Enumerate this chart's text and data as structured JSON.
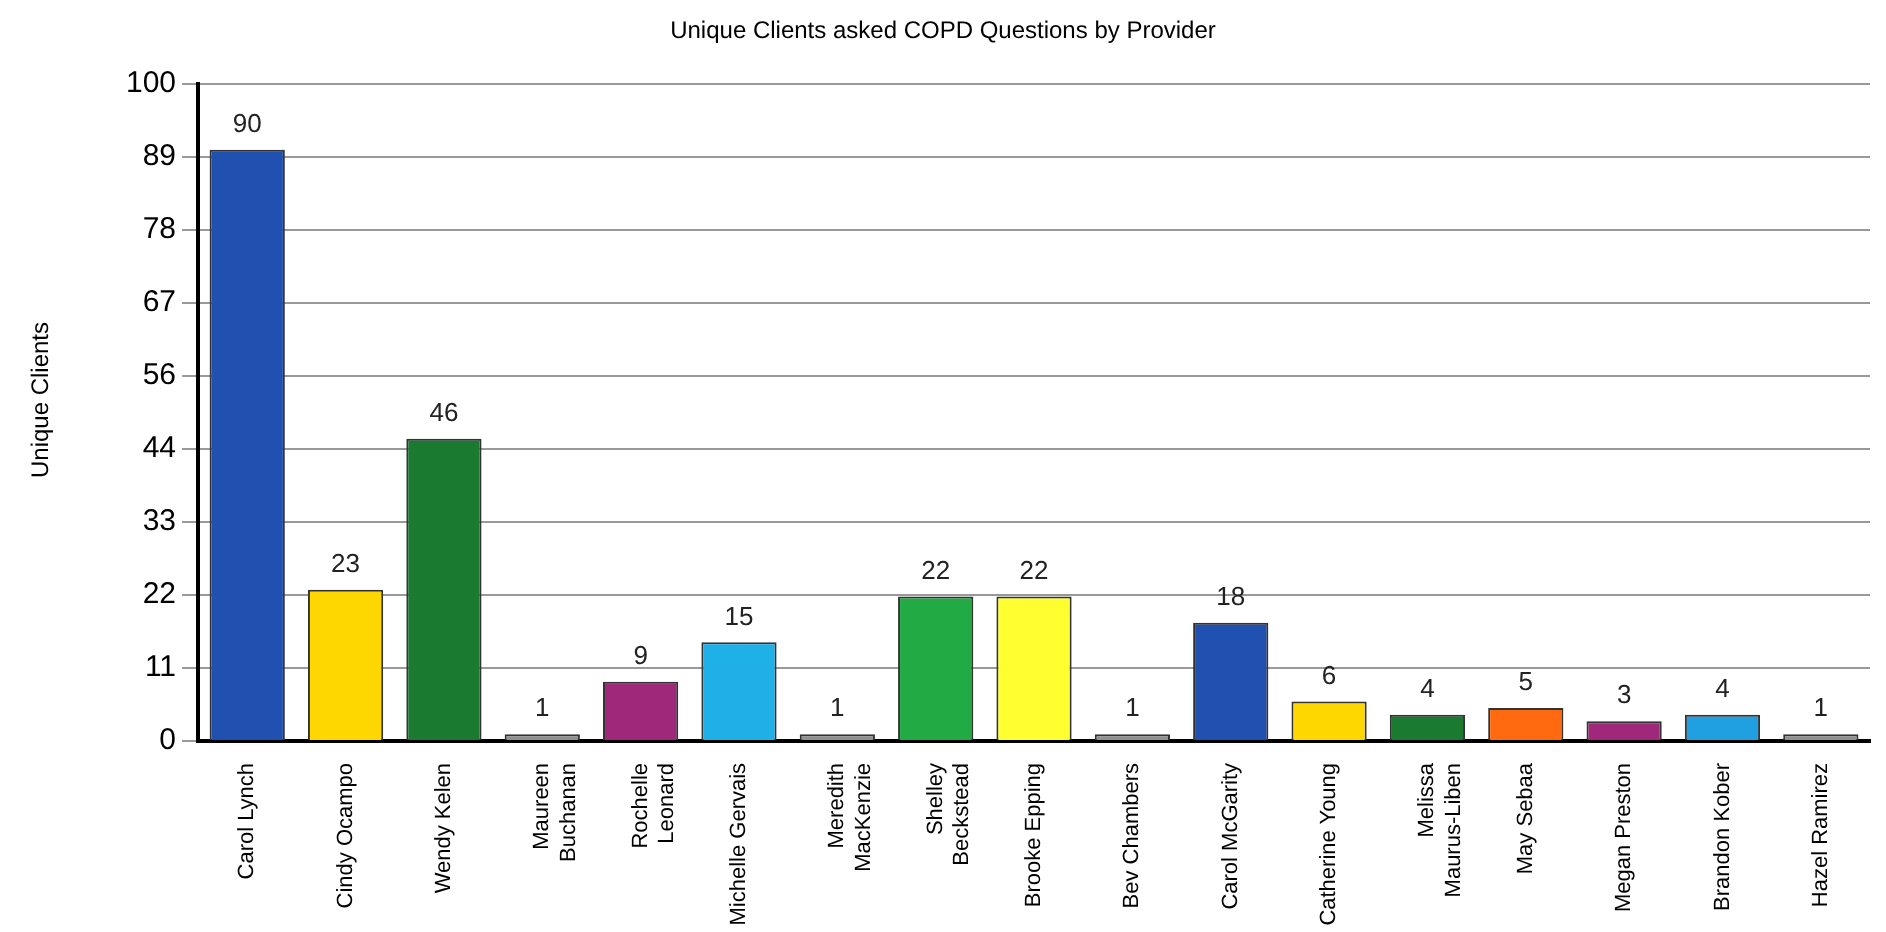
{
  "chart_data": {
    "type": "bar",
    "title": "Unique Clients asked COPD Questions by Provider",
    "ylabel": "Unique Clients",
    "categories": [
      "Carol Lynch",
      "Cindy Ocampo",
      "Wendy Kelen",
      "Maureen\nBuchanan",
      "Rochelle\nLeonard",
      "Michelle Gervais",
      "Meredith\nMacKenzie",
      "Shelley\nBeckstead",
      "Brooke Epping",
      "Bev Chambers",
      "Carol McGarity",
      "Catherine Young",
      "Melissa\nMaurus-Liben",
      "May Sebaa",
      "Megan Preston",
      "Brandon Kober",
      "Hazel Ramirez"
    ],
    "values": [
      90,
      23,
      46,
      1,
      9,
      15,
      1,
      22,
      22,
      1,
      18,
      6,
      4,
      5,
      3,
      4,
      1
    ],
    "colors": [
      "#2050b0",
      "#ffd700",
      "#1a7a30",
      "#909090",
      "#a0287a",
      "#20b0e8",
      "#909090",
      "#22aa44",
      "#ffff30",
      "#909090",
      "#2050b0",
      "#ffd700",
      "#1a7a30",
      "#ff6a10",
      "#a0287a",
      "#20a0e0",
      "#909090"
    ],
    "ylim": [
      0,
      100
    ],
    "yticks": [
      0,
      {
        "value": 11.11,
        "label": "11"
      },
      {
        "value": 22.22,
        "label": "22"
      },
      {
        "value": 33.33,
        "label": "33"
      },
      {
        "value": 44.44,
        "label": "44"
      },
      {
        "value": 55.56,
        "label": "56"
      },
      {
        "value": 66.67,
        "label": "67"
      },
      {
        "value": 77.78,
        "label": "78"
      },
      {
        "value": 88.89,
        "label": "89"
      },
      100
    ],
    "grid": "y",
    "data_labels": true
  }
}
